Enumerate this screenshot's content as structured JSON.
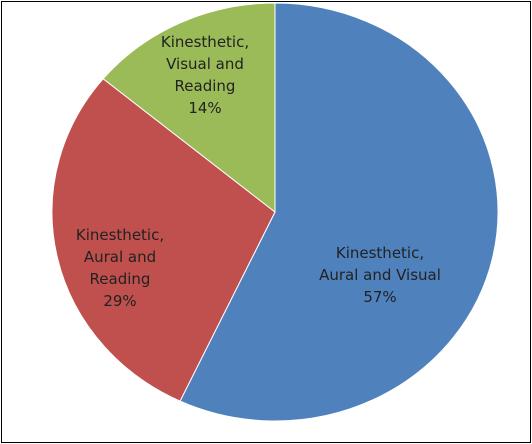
{
  "chart_data": {
    "type": "pie",
    "categories": [
      "Kinesthetic,\nAural and Visual",
      "Kinesthetic,\nAural and\nReading",
      "Kinesthetic,\nVisual and\nReading"
    ],
    "values": [
      57,
      29,
      14
    ],
    "value_labels": [
      "57%",
      "29%",
      "14%"
    ],
    "colors": [
      "#4f81bd",
      "#c0504d",
      "#9bbb59"
    ]
  }
}
